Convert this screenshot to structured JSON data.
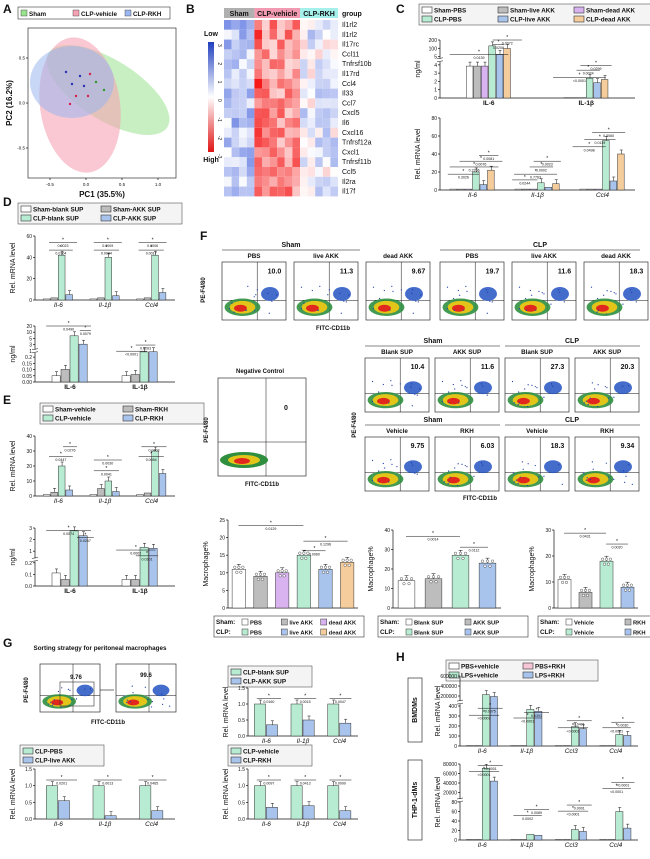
{
  "figure": {
    "panel_letters": [
      "A",
      "B",
      "C",
      "D",
      "E",
      "F",
      "G",
      "H"
    ]
  },
  "colors": {
    "sham": "#ffffff",
    "pbs": "#ffffff",
    "blank": "#ffffff",
    "grey": "#bdbdbd",
    "mint": "#b8ecd2",
    "blue": "#a8c4ec",
    "purple": "#d9b3f0",
    "orange": "#f5cc9b",
    "pink": "#f7c6d6",
    "heatmap_low": "#1f3fbf",
    "heatmap_high": "#e01414",
    "pca_green": "#9be28f",
    "pca_pink": "#f5a3b4",
    "pca_blue": "#9bb6ef"
  },
  "panelA": {
    "legend": [
      "Sham",
      "CLP-vehicle",
      "CLP-RKH"
    ],
    "xlabel": "PC1 (35.5%)",
    "ylabel": "PC2 (16.2%)",
    "xticks": [
      "-0.5",
      "0.0",
      "0.5",
      "1.0"
    ],
    "yticks": [
      "0.5",
      "0.0",
      "-0.5"
    ]
  },
  "panelB": {
    "col_groups": [
      "Sham",
      "CLP-vehicle",
      "CLP-RKH"
    ],
    "group_header": "group",
    "scale_low": "Low",
    "scale_high": "High",
    "scale_ticks": [
      "3",
      "2",
      "1",
      "0",
      "-1",
      "-2",
      "-3"
    ],
    "genes": [
      "Il1rl2",
      "Il1rl2",
      "Il17rc",
      "Ccl11",
      "Tnfrsf10b",
      "Il17rd",
      "Ccl4",
      "Il33",
      "Ccl7",
      "Cxcl5",
      "Il6",
      "Cxcl16",
      "Tnfrsf12a",
      "Cxcl1",
      "Tnfrsf11b",
      "Ccl5",
      "Il2ra",
      "Il17f"
    ]
  },
  "chart_data": [
    {
      "panel": "C-top",
      "type": "bar",
      "ylabel": "ng/ml",
      "categories": [
        "IL-6",
        "IL-1β"
      ],
      "legend": [
        "Sham-PBS",
        "Sham-live AKK",
        "Sham-dead AKK",
        "CLP-PBS",
        "CLP-live AKK",
        "CLP-dead AKK"
      ],
      "series": [
        {
          "name": "Sham-PBS",
          "values": [
            5,
            0.05
          ]
        },
        {
          "name": "Sham-live AKK",
          "values": [
            5,
            0.05
          ]
        },
        {
          "name": "Sham-dead AKK",
          "values": [
            5,
            0.05
          ]
        },
        {
          "name": "CLP-PBS",
          "values": [
            160,
            3.1
          ]
        },
        {
          "name": "CLP-live AKK",
          "values": [
            95,
            2.4
          ]
        },
        {
          "name": "CLP-dead AKK",
          "values": [
            140,
            2.9
          ]
        }
      ],
      "pvalues": [
        "0.0139",
        "0.0208",
        "0.0072",
        "<0.0001",
        "0.0024",
        "0.0299"
      ],
      "yticks": [
        "200",
        "100",
        "5",
        "4",
        "3",
        "2",
        "1",
        "0"
      ]
    },
    {
      "panel": "C-bottom",
      "type": "bar",
      "ylabel": "Rel. mRNA level",
      "categories": [
        "Il-6",
        "Il-1β",
        "Ccl4"
      ],
      "series": [
        {
          "name": "Sham-PBS",
          "values": [
            1,
            1,
            1
          ]
        },
        {
          "name": "Sham-live AKK",
          "values": [
            1,
            1,
            1
          ]
        },
        {
          "name": "Sham-dead AKK",
          "values": [
            1,
            1,
            1
          ]
        },
        {
          "name": "CLP-PBS",
          "values": [
            20,
            8,
            55
          ]
        },
        {
          "name": "CLP-live AKK",
          "values": [
            6,
            3,
            10
          ]
        },
        {
          "name": "CLP-dead AKK",
          "values": [
            22,
            7,
            40
          ]
        }
      ],
      "pvalues": [
        "0.3026",
        "0.2206",
        "0.0081",
        "0.0076",
        "0.0244",
        "0.7763",
        "0.0002",
        "0.0023",
        "0.0498",
        "0.0119",
        "0.0060"
      ],
      "yticks": [
        "80",
        "60",
        "40",
        "20",
        "0"
      ]
    },
    {
      "panel": "D-top",
      "type": "bar",
      "ylabel": "Rel. mRNA level",
      "categories": [
        "Il-6",
        "Il-1β",
        "Ccl4"
      ],
      "legend": [
        "Sham-blank SUP",
        "Sham-AKK SUP",
        "CLP-blank SUP",
        "CLP-AKK SUP"
      ],
      "series": [
        {
          "name": "Sham-blank SUP",
          "values": [
            1,
            1,
            1
          ]
        },
        {
          "name": "Sham-AKK SUP",
          "values": [
            2,
            2,
            2
          ]
        },
        {
          "name": "CLP-blank SUP",
          "values": [
            42,
            40,
            42
          ]
        },
        {
          "name": "CLP-AKK SUP",
          "values": [
            5,
            4,
            7
          ]
        }
      ],
      "pvalues": [
        "0.0104",
        "0.0023",
        "0.0084",
        "0.0009",
        "0.0017",
        "0.0006"
      ],
      "yticks": [
        "60",
        "40",
        "20",
        "0"
      ]
    },
    {
      "panel": "D-bottom",
      "type": "bar",
      "ylabel": "ng/ml",
      "categories": [
        "IL-6",
        "IL-1β"
      ],
      "series": [
        {
          "name": "Sham-blank SUP",
          "values": [
            0.05,
            0.05
          ]
        },
        {
          "name": "Sham-AKK SUP",
          "values": [
            0.1,
            0.06
          ]
        },
        {
          "name": "CLP-blank SUP",
          "values": [
            14,
            2.5
          ]
        },
        {
          "name": "CLP-AKK SUP",
          "values": [
            8,
            2.6
          ]
        }
      ],
      "pvalues": [
        "0.0490",
        "0.0079",
        "<0.0001",
        "0.0263"
      ],
      "yticks": [
        "20",
        "10",
        "5",
        "3",
        "1",
        "0.2",
        "0.15",
        "0.10",
        "0.05",
        "0.00"
      ]
    },
    {
      "panel": "E-top",
      "type": "bar",
      "ylabel": "Rel. mRNA level",
      "categories": [
        "Il-6",
        "Il-1β",
        "Ccl4"
      ],
      "legend": [
        "Sham-vehicle",
        "Sham-RKH",
        "CLP-vehicle",
        "CLP-RKH"
      ],
      "series": [
        {
          "name": "Sham-vehicle",
          "values": [
            1,
            1,
            1
          ]
        },
        {
          "name": "Sham-RKH",
          "values": [
            2.5,
            5,
            2
          ]
        },
        {
          "name": "CLP-vehicle",
          "values": [
            20,
            10,
            30
          ]
        },
        {
          "name": "CLP-RKH",
          "values": [
            4,
            3,
            15
          ]
        }
      ],
      "pvalues": [
        "0.0447",
        "0.0276",
        "0.0041",
        "0.0030",
        "0.0054",
        "0.0403"
      ],
      "yticks": [
        "40",
        "30",
        "20",
        "10",
        "0"
      ]
    },
    {
      "panel": "E-bottom",
      "type": "bar",
      "ylabel": "ng/ml",
      "categories": [
        "IL-6",
        "IL-1β"
      ],
      "series": [
        {
          "name": "Sham-vehicle",
          "values": [
            0.1,
            0.05
          ]
        },
        {
          "name": "Sham-RKH",
          "values": [
            0.05,
            0.05
          ]
        },
        {
          "name": "CLP-vehicle",
          "values": [
            3.2,
            1.5
          ]
        },
        {
          "name": "CLP-RKH",
          "values": [
            2.7,
            1.4
          ]
        }
      ],
      "pvalues": [
        "0.0074",
        "0.0267",
        "0.0002",
        "0.0201"
      ],
      "yticks": [
        "3",
        "2",
        "1",
        "0.2",
        "0.1",
        "0.0"
      ]
    },
    {
      "panel": "F-bar1",
      "type": "bar",
      "ylabel": "Macrophage%",
      "categories": [
        "Sham PBS",
        "Sham live AKK",
        "Sham dead AKK",
        "CLP PBS",
        "CLP live AKK",
        "CLP dead AKK"
      ],
      "values": [
        11,
        9,
        10,
        15,
        11,
        13
      ],
      "pvalues": [
        "0.0129",
        "0.0060",
        "0.1296"
      ],
      "yticks": [
        "25",
        "20",
        "15",
        "10",
        "5",
        "0"
      ]
    },
    {
      "panel": "F-bar2",
      "type": "bar",
      "ylabel": "Macrophage%",
      "categories": [
        "Sham Blank SUP",
        "Sham AKK SUP",
        "CLP Blank SUP",
        "CLP AKK SUP"
      ],
      "values": [
        14,
        15,
        27,
        23
      ],
      "pvalues": [
        "0.0014",
        "0.0112"
      ],
      "yticks": [
        "40",
        "30",
        "20",
        "10",
        "0"
      ]
    },
    {
      "panel": "F-bar3",
      "type": "bar",
      "ylabel": "Macrophage%",
      "categories": [
        "Sham Vehicle",
        "Sham RKH",
        "CLP Vehicle",
        "CLP RKH"
      ],
      "values": [
        11,
        6,
        18,
        8
      ],
      "pvalues": [
        "0.0431",
        "0.0020"
      ],
      "yticks": [
        "30",
        "20",
        "10",
        "0"
      ]
    },
    {
      "panel": "G-1",
      "type": "bar",
      "ylabel": "Rel. mRNA level",
      "categories": [
        "Il-6",
        "Il-1β",
        "Ccl4"
      ],
      "legend": [
        "CLP-blank SUP",
        "CLP-AKK SUP"
      ],
      "series": [
        {
          "name": "CLP-blank SUP",
          "values": [
            1,
            1,
            1
          ]
        },
        {
          "name": "CLP-AKK SUP",
          "values": [
            0.35,
            0.5,
            0.4
          ]
        }
      ],
      "pvalues": [
        "0.0160",
        "0.0015",
        "0.0047"
      ],
      "yticks": [
        "1.5",
        "1.0",
        "0.5",
        "0.0"
      ]
    },
    {
      "panel": "G-2",
      "type": "bar",
      "ylabel": "Rel. mRNA level",
      "categories": [
        "Il-6",
        "Il-1β",
        "Ccl4"
      ],
      "legend": [
        "CLP-PBS",
        "CLP-live AKK"
      ],
      "series": [
        {
          "name": "CLP-PBS",
          "values": [
            1,
            1,
            1
          ]
        },
        {
          "name": "CLP-live AKK",
          "values": [
            0.55,
            0.1,
            0.25
          ]
        }
      ],
      "pvalues": [
        "0.0201",
        "0.0013",
        "0.0465"
      ],
      "yticks": [
        "1.5",
        "1.0",
        "0.5",
        "0.0"
      ]
    },
    {
      "panel": "G-3",
      "type": "bar",
      "ylabel": "Rel. mRNA level",
      "categories": [
        "Il-6",
        "Il-1β",
        "Ccl4"
      ],
      "legend": [
        "CLP-vehicle",
        "CLP-RKH"
      ],
      "series": [
        {
          "name": "CLP-vehicle",
          "values": [
            1,
            1,
            1
          ]
        },
        {
          "name": "CLP-RKH",
          "values": [
            0.35,
            0.4,
            0.25
          ]
        }
      ],
      "pvalues": [
        "0.0097",
        "0.0413",
        "0.0099"
      ],
      "yticks": [
        "1.5",
        "1.0",
        "0.5",
        "0.0"
      ]
    },
    {
      "panel": "H-BMDMs",
      "type": "bar",
      "ylabel": "Rel. mRNA level",
      "categories": [
        "Il-6",
        "Il-1β",
        "Ccl3",
        "Ccl4"
      ],
      "legend": [
        "PBS+vehicle",
        "PBS+RKH",
        "LPS+vehicle",
        "LPS+RKH"
      ],
      "series": [
        {
          "name": "PBS+vehicle",
          "values": [
            1,
            1,
            1,
            1
          ]
        },
        {
          "name": "PBS+RKH",
          "values": [
            1,
            1,
            1,
            1
          ]
        },
        {
          "name": "LPS+vehicle",
          "values": [
            200000,
            380,
            200,
            120
          ]
        },
        {
          "name": "LPS+RKH",
          "values": [
            160000,
            360,
            180,
            110
          ]
        }
      ],
      "pvalues": [
        "<0.0001",
        "0.0375",
        "<0.0001",
        "0.0391",
        "<0.0001",
        "0.0401",
        "<0.0001",
        "0.0030"
      ],
      "yticks": [
        "600000",
        "400000",
        "200000",
        "400",
        "300",
        "200",
        "100",
        "0"
      ]
    },
    {
      "panel": "H-THP1",
      "type": "bar",
      "ylabel": "Rel. mRNA level",
      "categories": [
        "Il-6",
        "Il-1β",
        "Ccl3",
        "Ccl4"
      ],
      "series": [
        {
          "name": "PBS+vehicle",
          "values": [
            1,
            1,
            1,
            1
          ]
        },
        {
          "name": "PBS+RKH",
          "values": [
            1,
            1,
            1,
            1
          ]
        },
        {
          "name": "LPS+vehicle",
          "values": [
            70000,
            12,
            22,
            60
          ]
        },
        {
          "name": "LPS+RKH",
          "values": [
            40000,
            10,
            18,
            25
          ]
        }
      ],
      "pvalues": [
        "<0.0001",
        "<0.0001",
        "0.0002",
        "0.0089",
        "<0.0001",
        "0.0001",
        "<0.0001",
        "<0.0001"
      ],
      "yticks": [
        "80000",
        "60000",
        "40000",
        "20000",
        "80",
        "60",
        "40",
        "20",
        "0"
      ]
    }
  ],
  "panelF": {
    "flow_groups_top": [
      "Sham",
      "CLP"
    ],
    "flow_cols_top": [
      "PBS",
      "live AKK",
      "dead AKK",
      "PBS",
      "live AKK",
      "dead AKK"
    ],
    "flow_values_top": [
      "10.0",
      "11.3",
      "9.67",
      "19.7",
      "11.6",
      "18.3"
    ],
    "neg_control": "Negative Control",
    "neg_value": "0",
    "flow_groups_mid": [
      "Sham",
      "CLP"
    ],
    "flow_cols_mid": [
      "Blank SUP",
      "AKK SUP",
      "Blank SUP",
      "AKK SUP"
    ],
    "flow_values_mid": [
      "10.4",
      "11.6",
      "27.3",
      "20.3"
    ],
    "flow_groups_bot": [
      "Sham",
      "CLP"
    ],
    "flow_cols_bot": [
      "Vehicle",
      "RKH",
      "Vehicle",
      "RKH"
    ],
    "flow_values_bot": [
      "9.75",
      "6.03",
      "18.3",
      "9.34"
    ],
    "xaxis": "FITC-CD11b",
    "yaxis": "PE-F4/80",
    "bar1_labels": [
      "Sham:",
      "CLP:"
    ],
    "bar1_legend": [
      "PBS",
      "live AKK",
      "dead AKK",
      "PBS",
      "live AKK",
      "dead AKK"
    ],
    "bar2_legend": [
      "Blank SUP",
      "AKK SUP",
      "Blank SUP",
      "AKK SUP"
    ],
    "bar3_legend": [
      "Vehicle",
      "RKH",
      "Vehicle",
      "RKH"
    ]
  },
  "panelG": {
    "title": "Sorting strategy for peritoneal macrophages",
    "gate1": "9.76",
    "gate2": "99.6",
    "xaxis": "FITC-CD11b",
    "yaxis": "PE-F4/80"
  },
  "panelH": {
    "row1": "BMDMs",
    "row2": "THP-1-dMs"
  }
}
